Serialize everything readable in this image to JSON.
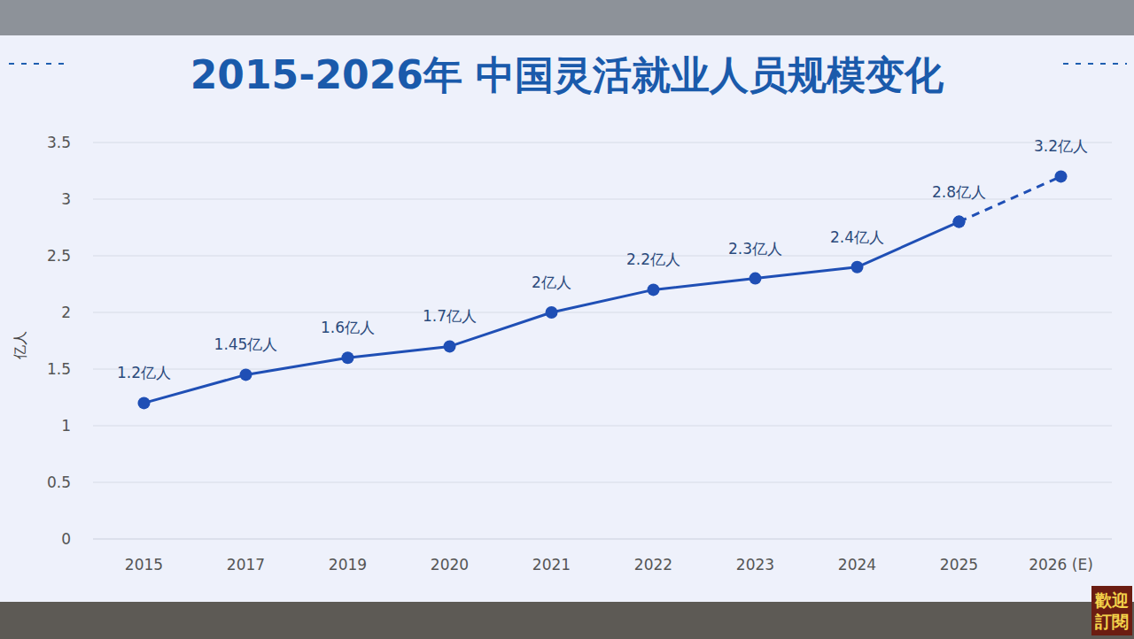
{
  "chart_data": {
    "type": "line",
    "title": "2015-2026年 中国灵活就业人员规模变化",
    "y_label": "亿人",
    "categories": [
      "2015",
      "2017",
      "2019",
      "2020",
      "2021",
      "2022",
      "2023",
      "2024",
      "2025",
      "2026 (E)"
    ],
    "series": [
      {
        "color": "#1f4fb5",
        "line_style": "solid",
        "marker": "circle",
        "values": [
          1.2,
          1.45,
          1.6,
          1.7,
          2,
          2.2,
          2.3,
          2.4,
          2.8,
          null
        ],
        "value_labels": [
          "1.2亿人",
          "1.45亿人",
          "1.6亿人",
          "1.7亿人",
          "2亿人",
          "2.2亿人",
          "2.3亿人",
          "2.4亿人",
          "2.8亿人",
          null
        ]
      },
      {
        "color": "#1f4fb5",
        "line_style": "dashed",
        "marker": "circle",
        "values": [
          null,
          null,
          null,
          null,
          null,
          null,
          null,
          null,
          2.8,
          3.2
        ],
        "value_labels": [
          null,
          null,
          null,
          null,
          null,
          null,
          null,
          null,
          null,
          "3.2亿人"
        ]
      }
    ],
    "ylim": [
      0,
      3.5
    ],
    "yticks": [
      0,
      0.5,
      1,
      1.5,
      2,
      2.5,
      3,
      3.5
    ],
    "grid": true,
    "data_labels": true,
    "watermark": [
      "歡迎",
      "訂閱"
    ]
  }
}
